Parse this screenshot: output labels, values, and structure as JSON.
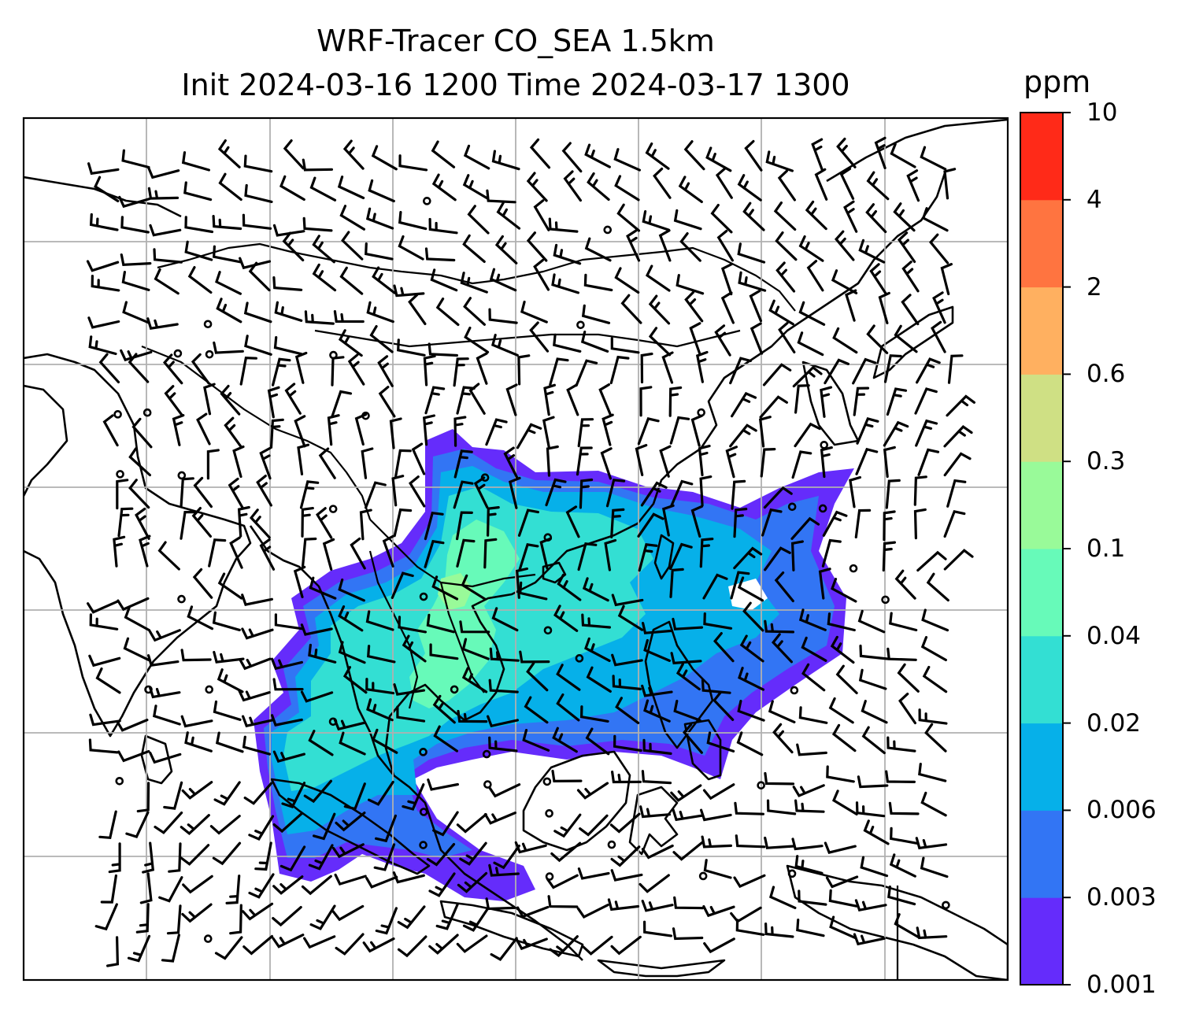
{
  "title_line1": "WRF-Tracer CO_SEA 1.5km",
  "title_line2": "Init 2024-03-16 1200 Time 2024-03-17 1300",
  "colorbar": {
    "unit": "ppm",
    "levels": [
      "0.001",
      "0.003",
      "0.006",
      "0.02",
      "0.04",
      "0.1",
      "0.3",
      "0.6",
      "2",
      "4",
      "10"
    ],
    "colors": [
      "#652CFB",
      "#3275F4",
      "#06B0E9",
      "#33DFD3",
      "#67FAB9",
      "#99FA99",
      "#CFE084",
      "#FFB060",
      "#FF7440",
      "#FF2A18"
    ]
  }
}
